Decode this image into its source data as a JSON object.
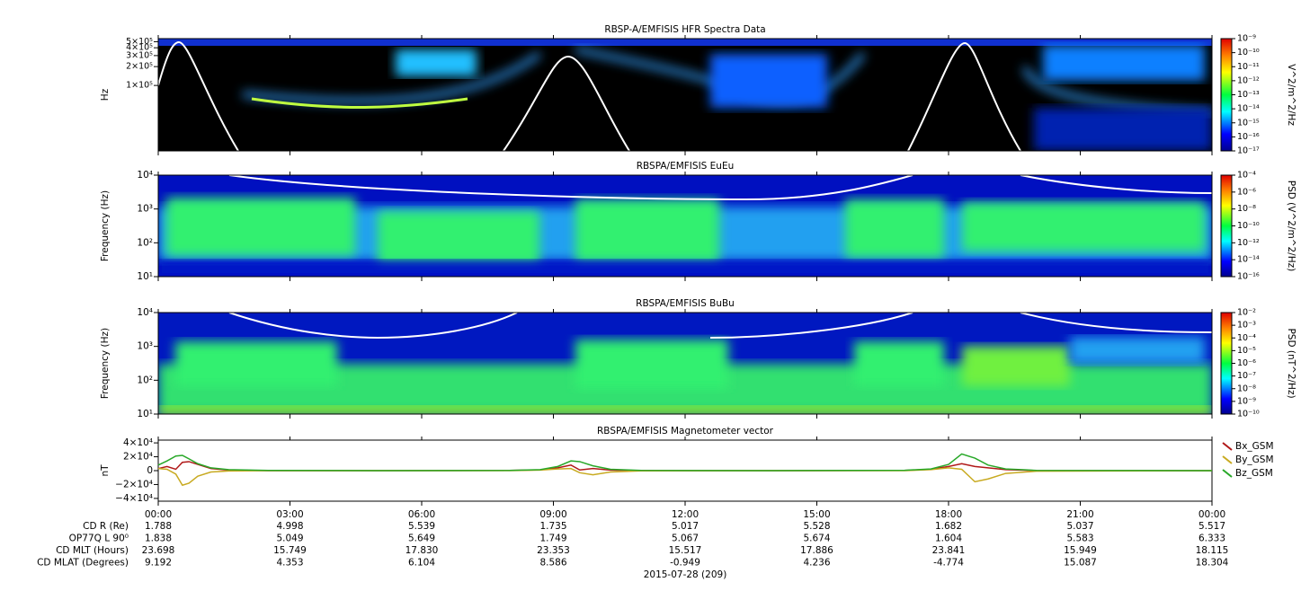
{
  "chart_data": [
    {
      "type": "spectrogram",
      "title": "RBSP-A/EMFISIS  HFR Spectra Data",
      "ylabel": "Hz",
      "yscale": "log",
      "ylim": [
        9000,
        560000
      ],
      "yticks": [
        {
          "value": 100000,
          "label": "1×10⁵"
        },
        {
          "value": 200000,
          "label": "2×10⁵"
        },
        {
          "value": 300000,
          "label": "3×10⁵"
        },
        {
          "value": 400000,
          "label": "4×10⁵"
        },
        {
          "value": 500000,
          "label": "5×10⁵"
        }
      ],
      "colorbar_label": "V^2/m^2/Hz",
      "clim": [
        1e-17,
        1e-09
      ],
      "cticks": [
        {
          "value": 1e-17,
          "label": "10⁻¹⁷"
        },
        {
          "value": 1e-16,
          "label": "10⁻¹⁶"
        },
        {
          "value": 1e-15,
          "label": "10⁻¹⁵"
        },
        {
          "value": 1e-14,
          "label": "10⁻¹⁴"
        },
        {
          "value": 1e-13,
          "label": "10⁻¹³"
        },
        {
          "value": 1e-12,
          "label": "10⁻¹²"
        },
        {
          "value": 1e-11,
          "label": "10⁻¹¹"
        },
        {
          "value": 1e-10,
          "label": "10⁻¹⁰"
        },
        {
          "value": 1e-09,
          "label": "10⁻⁹"
        }
      ]
    },
    {
      "type": "spectrogram",
      "title": "RBSPA/EMFISIS  EuEu",
      "ylabel": "Frequency (Hz)",
      "yscale": "log",
      "ylim": [
        10,
        10000
      ],
      "yticks": [
        {
          "value": 10,
          "label": "10¹"
        },
        {
          "value": 100,
          "label": "10²"
        },
        {
          "value": 1000,
          "label": "10³"
        },
        {
          "value": 10000,
          "label": "10⁴"
        }
      ],
      "colorbar_label": "PSD (V^2/m^2/Hz)",
      "clim": [
        1e-16,
        0.0001
      ],
      "cticks": [
        {
          "value": 1e-16,
          "label": "10⁻¹⁶"
        },
        {
          "value": 1e-14,
          "label": "10⁻¹⁴"
        },
        {
          "value": 1e-12,
          "label": "10⁻¹²"
        },
        {
          "value": 1e-10,
          "label": "10⁻¹⁰"
        },
        {
          "value": 1e-08,
          "label": "10⁻⁸"
        },
        {
          "value": 1e-06,
          "label": "10⁻⁶"
        },
        {
          "value": 0.0001,
          "label": "10⁻⁴"
        }
      ]
    },
    {
      "type": "spectrogram",
      "title": "RBSPA/EMFISIS  BuBu",
      "ylabel": "Frequency (Hz)",
      "yscale": "log",
      "ylim": [
        10,
        10000
      ],
      "yticks": [
        {
          "value": 10,
          "label": "10¹"
        },
        {
          "value": 100,
          "label": "10²"
        },
        {
          "value": 1000,
          "label": "10³"
        },
        {
          "value": 10000,
          "label": "10⁴"
        }
      ],
      "colorbar_label": "PSD (nT^2/Hz)",
      "clim": [
        1e-10,
        0.01
      ],
      "cticks": [
        {
          "value": 1e-10,
          "label": "10⁻¹⁰"
        },
        {
          "value": 1e-09,
          "label": "10⁻⁹"
        },
        {
          "value": 1e-08,
          "label": "10⁻⁸"
        },
        {
          "value": 1e-07,
          "label": "10⁻⁷"
        },
        {
          "value": 1e-06,
          "label": "10⁻⁶"
        },
        {
          "value": 1e-05,
          "label": "10⁻⁵"
        },
        {
          "value": 0.0001,
          "label": "10⁻⁴"
        },
        {
          "value": 0.001,
          "label": "10⁻³"
        },
        {
          "value": 0.01,
          "label": "10⁻²"
        }
      ]
    },
    {
      "type": "line",
      "title": "RBSPA/EMFISIS  Magnetometer vector",
      "ylabel": "nT",
      "ylim": [
        -44000,
        44000
      ],
      "yticks": [
        {
          "value": -40000,
          "label": "−4×10⁴"
        },
        {
          "value": -20000,
          "label": "−2×10⁴"
        },
        0,
        {
          "value": 20000,
          "label": "2×10⁴"
        },
        {
          "value": 40000,
          "label": "4×10⁴"
        }
      ],
      "x": [
        0,
        0.2,
        0.4,
        0.55,
        0.7,
        0.9,
        1.2,
        1.6,
        2.5,
        5,
        8,
        8.7,
        9.1,
        9.4,
        9.6,
        9.9,
        10.3,
        11,
        14,
        17,
        17.6,
        18.0,
        18.3,
        18.6,
        18.9,
        19.3,
        20,
        24
      ],
      "series": [
        {
          "name": "Bx_GSM",
          "color": "#b01818",
          "values": [
            3000,
            6000,
            2000,
            12000,
            13000,
            9000,
            3000,
            800,
            0,
            0,
            300,
            1200,
            4000,
            8000,
            1000,
            3000,
            800,
            100,
            0,
            300,
            2000,
            6000,
            10000,
            6000,
            4000,
            1500,
            200,
            0
          ]
        },
        {
          "name": "By_GSM",
          "color": "#c8aa20",
          "values": [
            3000,
            2000,
            -5000,
            -21000,
            -18000,
            -8000,
            -2000,
            -500,
            0,
            0,
            0,
            800,
            2500,
            3000,
            -3000,
            -6000,
            -2000,
            -300,
            0,
            0,
            1500,
            4000,
            2000,
            -16000,
            -12000,
            -4000,
            -800,
            0
          ]
        },
        {
          "name": "Bz_GSM",
          "color": "#28a828",
          "values": [
            8000,
            14000,
            21000,
            22000,
            17000,
            10000,
            4000,
            1500,
            300,
            0,
            400,
            1500,
            6000,
            14000,
            13000,
            7000,
            2000,
            300,
            0,
            500,
            2500,
            9000,
            24000,
            18000,
            8000,
            2500,
            400,
            0
          ]
        }
      ]
    }
  ],
  "x_axis": {
    "xlim": [
      0,
      24
    ],
    "label": "2015-07-28 (209)",
    "xticks": [
      {
        "value": 0,
        "label": "00:00"
      },
      {
        "value": 3,
        "label": "03:00"
      },
      {
        "value": 6,
        "label": "06:00"
      },
      {
        "value": 9,
        "label": "09:00"
      },
      {
        "value": 12,
        "label": "12:00"
      },
      {
        "value": 15,
        "label": "15:00"
      },
      {
        "value": 18,
        "label": "18:00"
      },
      {
        "value": 21,
        "label": "21:00"
      },
      {
        "value": 24,
        "label": "00:00"
      }
    ]
  },
  "ephemeris": [
    {
      "label": "CD R (Re)",
      "values": [
        "1.788",
        "4.998",
        "5.539",
        "1.735",
        "5.017",
        "5.528",
        "1.682",
        "5.037",
        "5.517"
      ]
    },
    {
      "label": "OP77Q L 90⁰",
      "values": [
        "1.838",
        "5.049",
        "5.649",
        "1.749",
        "5.067",
        "5.674",
        "1.604",
        "5.583",
        "6.333"
      ]
    },
    {
      "label": "CD MLT (Hours)",
      "values": [
        "23.698",
        "15.749",
        "17.830",
        "23.353",
        "15.517",
        "17.886",
        "23.841",
        "15.949",
        "18.115"
      ]
    },
    {
      "label": "CD MLAT (Degrees)",
      "values": [
        "9.192",
        "4.353",
        "6.104",
        "8.586",
        "-0.949",
        "4.236",
        "-4.774",
        "15.087",
        "18.304"
      ]
    }
  ]
}
